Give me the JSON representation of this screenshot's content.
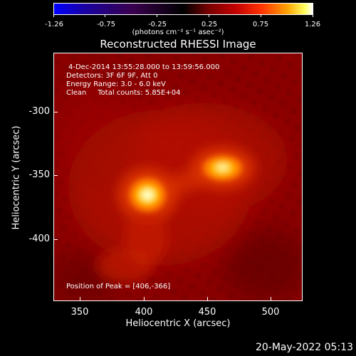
{
  "colorbar": {
    "ticks": [
      "-1.26",
      "-0.75",
      "-0.25",
      "0.25",
      "0.75",
      "1.26"
    ],
    "unit_label": "(photons cm⁻² s⁻¹ asec⁻²)"
  },
  "title": "Reconstructed RHESSI Image",
  "info": {
    "time": "4-Dec-2014 13:55:28.000 to 13:59:56.000",
    "detectors": "Detectors: 3F 6F 9F, Att 0",
    "energy": "Energy Range: 3.0 - 6.0 keV",
    "clean": "Clean     Total counts: 5.85E+04",
    "peak": "Position of Peak = [406,-366]"
  },
  "axes": {
    "xlabel": "Heliocentric X (arcsec)",
    "ylabel": "Heliocentric Y (arcsec)",
    "xticks": [
      "350",
      "400",
      "450",
      "500"
    ],
    "yticks": [
      "-300",
      "-350",
      "-400"
    ]
  },
  "footer_timestamp": "20-May-2022 05:13"
}
